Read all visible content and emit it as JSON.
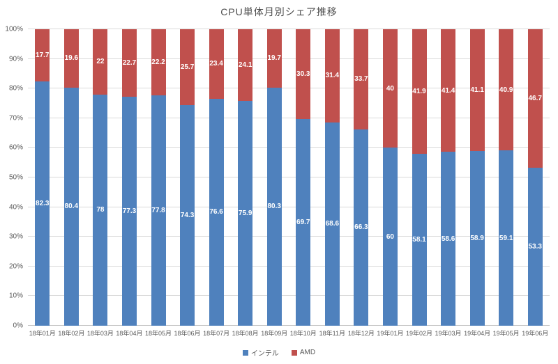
{
  "chart": {
    "title": "CPU単体月別シェア推移",
    "colors": {
      "intel": "#4F81BD",
      "amd": "#C0504D",
      "gridline": "#D9D9D9",
      "axis_line": "#BFBFBF",
      "axis_text": "#595959",
      "value_label_text": "#FFFFFF"
    }
  },
  "chart_data": {
    "type": "bar",
    "stacked": true,
    "stacked_to_100_percent": true,
    "title": "CPU単体月別シェア推移",
    "xlabel": "",
    "ylabel": "",
    "ylim": [
      0,
      100
    ],
    "y_ticks": [
      "0%",
      "10%",
      "20%",
      "30%",
      "40%",
      "50%",
      "60%",
      "70%",
      "80%",
      "90%",
      "100%"
    ],
    "grid": true,
    "legend_position": "bottom",
    "categories": [
      "18年01月",
      "18年02月",
      "18年03月",
      "18年04月",
      "18年05月",
      "18年06月",
      "18年07月",
      "18年08月",
      "18年09月",
      "18年10月",
      "18年11月",
      "18年12月",
      "19年01月",
      "19年02月",
      "19年03月",
      "19年04月",
      "19年05月",
      "19年06月"
    ],
    "series": [
      {
        "name": "インテル",
        "color": "#4F81BD",
        "values": [
          82.3,
          80.4,
          78,
          77.3,
          77.8,
          74.3,
          76.6,
          75.9,
          80.3,
          69.7,
          68.6,
          66.3,
          60,
          58.1,
          58.6,
          58.9,
          59.1,
          53.3
        ]
      },
      {
        "name": "AMD",
        "color": "#C0504D",
        "values": [
          17.7,
          19.6,
          22,
          22.7,
          22.2,
          25.7,
          23.4,
          24.1,
          19.7,
          30.3,
          31.4,
          33.7,
          40,
          41.9,
          41.4,
          41.1,
          40.9,
          46.7
        ]
      }
    ]
  }
}
